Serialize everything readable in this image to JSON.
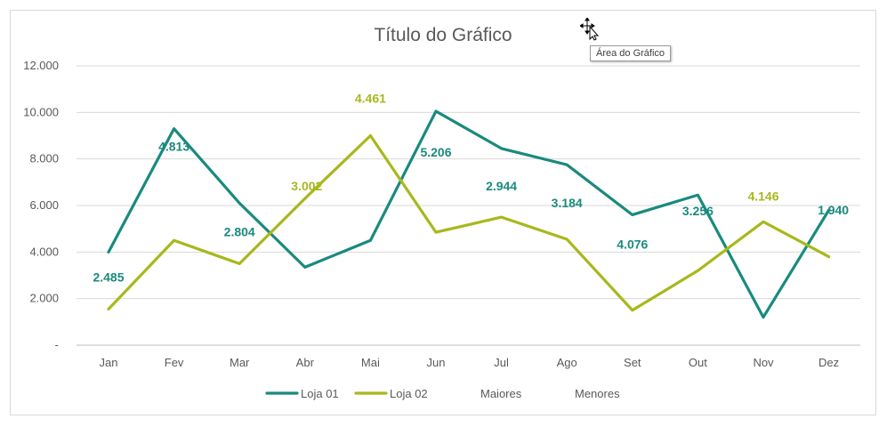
{
  "chart_data": {
    "type": "line",
    "title": "Título do Gráfico",
    "categories": [
      "Jan",
      "Fev",
      "Mar",
      "Abr",
      "Mai",
      "Jun",
      "Jul",
      "Ago",
      "Set",
      "Out",
      "Nov",
      "Dez"
    ],
    "ylim": [
      0,
      12000
    ],
    "yticks": [
      0,
      2000,
      4000,
      6000,
      8000,
      10000,
      12000
    ],
    "ytick_labels": [
      "-",
      "2.000",
      "4.000",
      "6.000",
      "8.000",
      "10.000",
      "12.000"
    ],
    "grid": true,
    "legend": "bottom",
    "series": [
      {
        "name": "Loja 01",
        "color": "#1a8a7e",
        "values": [
          4000,
          9300,
          6100,
          3350,
          4500,
          10050,
          8450,
          7750,
          5600,
          6450,
          1200,
          5800
        ],
        "labels": [
          "2.485",
          "4.813",
          "2.804",
          "",
          "",
          "5.206",
          "2.944",
          "3.184",
          "4.076",
          "3.256",
          "",
          "1.940"
        ]
      },
      {
        "name": "Loja 02",
        "color": "#a8b81c",
        "values": [
          1550,
          4500,
          3500,
          6300,
          9000,
          4850,
          5500,
          4550,
          1500,
          3200,
          5300,
          3800
        ],
        "labels": [
          "",
          "",
          "",
          "3.002",
          "4.461",
          "",
          "",
          "",
          "",
          "",
          "4.146",
          ""
        ]
      }
    ],
    "legend_extra": [
      "Maiores",
      "Menores"
    ]
  },
  "tooltip": {
    "text": "Área do Gráfico"
  },
  "icons": {
    "cursor": "move-cursor-icon"
  }
}
